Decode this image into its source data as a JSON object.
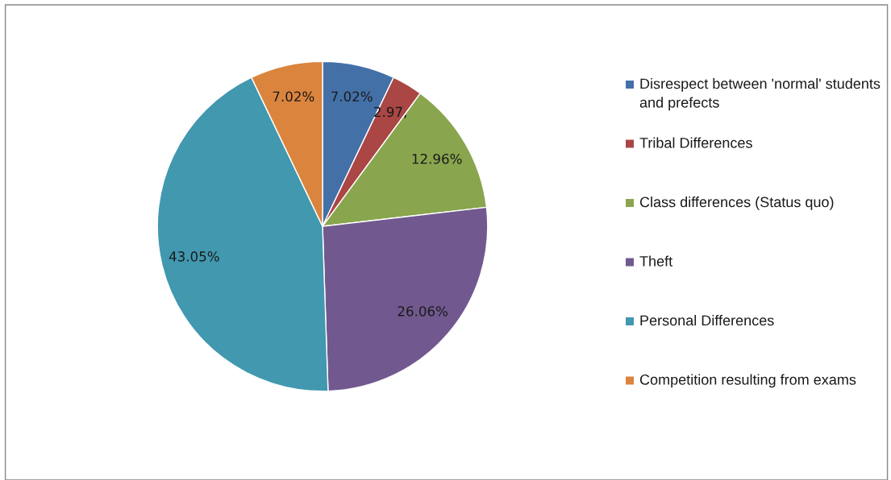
{
  "chart_data": {
    "type": "pie",
    "categories": [
      "Disrespect between 'normal' students and prefects",
      "Tribal Differences",
      "Class differences (Status quo)",
      "Theft",
      "Personal Differences",
      "Competition resulting from exams"
    ],
    "values": [
      7.02,
      2.97,
      12.96,
      26.06,
      43.05,
      7.02
    ],
    "colors": [
      "#4470a8",
      "#aa4644",
      "#89a54e",
      "#71598f",
      "#4198af",
      "#db843d"
    ],
    "value_labels": [
      "7.02%",
      "2.97,",
      "12.96%",
      "26.06%",
      "43.05%",
      "7.02%"
    ],
    "legend": "right"
  }
}
